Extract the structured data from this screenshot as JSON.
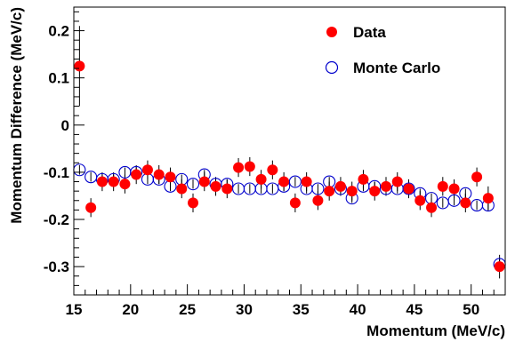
{
  "chart_data": {
    "type": "scatter",
    "title": "",
    "xlabel": "Momentum (MeV/c)",
    "ylabel": "Momentum Difference (MeV/c)",
    "xlim": [
      15,
      53
    ],
    "ylim": [
      -0.36,
      0.25
    ],
    "xticks": [
      15,
      20,
      25,
      30,
      35,
      40,
      45,
      50
    ],
    "yticks": [
      -0.3,
      -0.2,
      -0.1,
      0,
      0.1,
      0.2
    ],
    "ytick_labels": [
      "-0.3",
      "-0.2",
      "-0.1",
      "0",
      "0.1",
      "0.2"
    ],
    "grid": false,
    "legend_position": "top-right",
    "series": [
      {
        "name": "Data",
        "marker": "filled-circle",
        "color": "#ff0000",
        "x": [
          15.5,
          16.5,
          17.5,
          18.5,
          19.5,
          20.5,
          21.5,
          22.5,
          23.5,
          24.5,
          25.5,
          26.5,
          27.5,
          28.5,
          29.5,
          30.5,
          31.5,
          32.5,
          33.5,
          34.5,
          35.5,
          36.5,
          37.5,
          38.5,
          39.5,
          40.5,
          41.5,
          42.5,
          43.5,
          44.5,
          45.5,
          46.5,
          47.5,
          48.5,
          49.5,
          50.5,
          51.5,
          52.5
        ],
        "y": [
          0.125,
          -0.175,
          -0.12,
          -0.12,
          -0.125,
          -0.105,
          -0.095,
          -0.105,
          -0.11,
          -0.135,
          -0.165,
          -0.12,
          -0.13,
          -0.135,
          -0.09,
          -0.088,
          -0.115,
          -0.095,
          -0.12,
          -0.165,
          -0.12,
          -0.16,
          -0.14,
          -0.13,
          -0.14,
          -0.115,
          -0.14,
          -0.13,
          -0.12,
          -0.135,
          -0.16,
          -0.175,
          -0.13,
          -0.135,
          -0.165,
          -0.11,
          -0.155,
          -0.3
        ],
        "err": [
          0.085,
          0.02,
          0.02,
          0.02,
          0.02,
          0.02,
          0.02,
          0.02,
          0.02,
          0.02,
          0.02,
          0.02,
          0.02,
          0.02,
          0.02,
          0.02,
          0.02,
          0.02,
          0.02,
          0.02,
          0.02,
          0.02,
          0.02,
          0.02,
          0.02,
          0.02,
          0.02,
          0.02,
          0.02,
          0.02,
          0.02,
          0.02,
          0.02,
          0.02,
          0.02,
          0.02,
          0.025,
          0.025
        ]
      },
      {
        "name": "Monte Carlo",
        "marker": "open-circle",
        "color": "#0000cc",
        "x": [
          15.5,
          16.5,
          17.5,
          18.5,
          19.5,
          20.5,
          21.5,
          22.5,
          23.5,
          24.5,
          25.5,
          26.5,
          27.5,
          28.5,
          29.5,
          30.5,
          31.5,
          32.5,
          33.5,
          34.5,
          35.5,
          36.5,
          37.5,
          38.5,
          39.5,
          40.5,
          41.5,
          42.5,
          43.5,
          44.5,
          45.5,
          46.5,
          47.5,
          48.5,
          49.5,
          50.5,
          51.5,
          52.5
        ],
        "y": [
          -0.095,
          -0.11,
          -0.115,
          -0.115,
          -0.1,
          -0.1,
          -0.115,
          -0.115,
          -0.13,
          -0.115,
          -0.125,
          -0.105,
          -0.125,
          -0.125,
          -0.135,
          -0.135,
          -0.135,
          -0.135,
          -0.13,
          -0.12,
          -0.135,
          -0.135,
          -0.12,
          -0.135,
          -0.155,
          -0.13,
          -0.13,
          -0.135,
          -0.135,
          -0.135,
          -0.145,
          -0.155,
          -0.165,
          -0.16,
          -0.145,
          -0.17,
          -0.17,
          -0.295
        ],
        "err": [
          0.01,
          0.01,
          0.01,
          0.01,
          0.01,
          0.01,
          0.01,
          0.01,
          0.01,
          0.01,
          0.01,
          0.01,
          0.01,
          0.01,
          0.01,
          0.01,
          0.01,
          0.01,
          0.01,
          0.01,
          0.01,
          0.01,
          0.01,
          0.01,
          0.01,
          0.01,
          0.01,
          0.01,
          0.01,
          0.01,
          0.01,
          0.01,
          0.01,
          0.01,
          0.01,
          0.01,
          0.012,
          0.012
        ]
      }
    ]
  }
}
